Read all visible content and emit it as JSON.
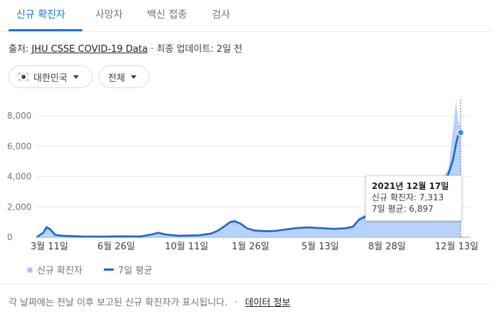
{
  "tabs": [
    {
      "label": "신규 확진자",
      "active": true
    },
    {
      "label": "사망자",
      "active": false
    },
    {
      "label": "백신 접종",
      "active": false
    },
    {
      "label": "검사",
      "active": false
    }
  ],
  "source": {
    "prefix": "출처:",
    "link": "JHU CSSE COVID-19 Data",
    "suffix": "· 최종 업데이트: 2일 전"
  },
  "filters": {
    "region": "대한민국",
    "region_icon": "south-korea-flag-icon",
    "scope": "전체"
  },
  "colors": {
    "accent": "#1a73e8",
    "line": "#1967d2",
    "area": "#a8c7fa"
  },
  "tooltip": {
    "date": "2021년 12월 17일",
    "cases_line": "신규 확진자: 7,313",
    "avg_line": "7일 평균: 6,897"
  },
  "legend": {
    "cases": "신규 확진자",
    "avg": "7일 평균"
  },
  "footer": {
    "note": "각 날짜에는 전날 이후 보고된 신규 확진자가 표시됩니다.",
    "link": "데이터 정보"
  },
  "chart_data": {
    "type": "area",
    "y_ticks": [
      "0",
      "2,000",
      "4,000",
      "6,000",
      "8,000"
    ],
    "ylim": [
      0,
      8000
    ],
    "x_ticks": [
      "3월 11일",
      "6월 26일",
      "10월 11일",
      "1월 26일",
      "5월 13일",
      "8월 28일",
      "12월 13일"
    ],
    "grid": true,
    "legend_position": "bottom-left",
    "series": [
      {
        "name": "7일 평균",
        "x": [
          "2020-02-20",
          "2020-03-01",
          "2020-03-06",
          "2020-03-11",
          "2020-03-20",
          "2020-04-01",
          "2020-05-01",
          "2020-06-01",
          "2020-07-01",
          "2020-08-01",
          "2020-08-20",
          "2020-08-28",
          "2020-09-10",
          "2020-10-01",
          "2020-11-01",
          "2020-11-20",
          "2020-12-01",
          "2020-12-10",
          "2020-12-20",
          "2020-12-27",
          "2021-01-05",
          "2021-01-15",
          "2021-01-26",
          "2021-02-15",
          "2021-03-01",
          "2021-04-01",
          "2021-04-20",
          "2021-05-13",
          "2021-06-01",
          "2021-06-20",
          "2021-07-01",
          "2021-07-10",
          "2021-07-20",
          "2021-07-28",
          "2021-08-10",
          "2021-08-28",
          "2021-09-10",
          "2021-09-25",
          "2021-10-05",
          "2021-10-20",
          "2021-11-01",
          "2021-11-10",
          "2021-11-20",
          "2021-11-28",
          "2021-12-05",
          "2021-12-10",
          "2021-12-13",
          "2021-12-17"
        ],
        "values": [
          20,
          300,
          650,
          550,
          150,
          100,
          50,
          40,
          60,
          50,
          200,
          300,
          180,
          100,
          130,
          250,
          450,
          700,
          1000,
          1050,
          900,
          600,
          450,
          400,
          420,
          600,
          650,
          600,
          550,
          600,
          700,
          1150,
          1350,
          1550,
          1700,
          1800,
          2100,
          2700,
          2500,
          1600,
          2100,
          2800,
          3500,
          4200,
          5100,
          6200,
          6700,
          6897
        ]
      },
      {
        "name": "신규 확진자",
        "x": [
          "2020-02-20",
          "2020-03-01",
          "2020-03-06",
          "2020-03-11",
          "2020-03-20",
          "2020-04-01",
          "2020-05-01",
          "2020-06-01",
          "2020-07-01",
          "2020-08-01",
          "2020-08-20",
          "2020-08-28",
          "2020-09-10",
          "2020-10-01",
          "2020-11-01",
          "2020-11-20",
          "2020-12-01",
          "2020-12-10",
          "2020-12-20",
          "2020-12-27",
          "2021-01-05",
          "2021-01-15",
          "2021-01-26",
          "2021-02-15",
          "2021-03-01",
          "2021-04-01",
          "2021-04-20",
          "2021-05-13",
          "2021-06-01",
          "2021-06-20",
          "2021-07-01",
          "2021-07-10",
          "2021-07-20",
          "2021-07-28",
          "2021-08-10",
          "2021-08-28",
          "2021-09-10",
          "2021-09-25",
          "2021-10-05",
          "2021-10-20",
          "2021-11-01",
          "2021-11-10",
          "2021-11-20",
          "2021-11-28",
          "2021-12-05",
          "2021-12-10",
          "2021-12-13",
          "2021-12-17"
        ],
        "values": [
          20,
          350,
          800,
          600,
          150,
          100,
          50,
          45,
          60,
          50,
          250,
          350,
          180,
          100,
          130,
          300,
          500,
          800,
          1100,
          1200,
          900,
          600,
          450,
          400,
          450,
          650,
          700,
          650,
          550,
          650,
          750,
          1300,
          1500,
          1700,
          1800,
          1900,
          2300,
          3000,
          2600,
          1500,
          2300,
          3000,
          4000,
          4500,
          7100,
          9000,
          7700,
          7313
        ]
      }
    ]
  }
}
